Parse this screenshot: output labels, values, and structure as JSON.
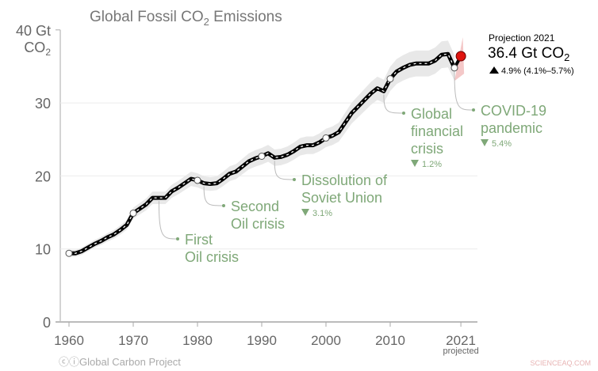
{
  "chart_data": {
    "type": "line",
    "title": "Global Fossil CO",
    "title_sub": "2",
    "title_end": " Emissions",
    "ylabel_line1": "40 Gt",
    "ylabel_line2": "CO",
    "ylabel_sub": "2",
    "ylim": [
      0,
      40
    ],
    "xlim": [
      1958,
      2022
    ],
    "grid": true,
    "y_ticks": [
      0,
      10,
      20,
      30
    ],
    "x_ticks": [
      {
        "year": 1960,
        "label": "1960"
      },
      {
        "year": 1970,
        "label": "1970"
      },
      {
        "year": 1980,
        "label": "1980"
      },
      {
        "year": 1990,
        "label": "1990"
      },
      {
        "year": 2000,
        "label": "2000"
      },
      {
        "year": 2010,
        "label": "2010"
      },
      {
        "year": 2021,
        "label": "2021"
      }
    ],
    "x_tick_note": "projected",
    "x": [
      1960,
      1961,
      1962,
      1963,
      1964,
      1965,
      1966,
      1967,
      1968,
      1969,
      1970,
      1971,
      1972,
      1973,
      1974,
      1975,
      1976,
      1977,
      1978,
      1979,
      1980,
      1981,
      1982,
      1983,
      1984,
      1985,
      1986,
      1987,
      1988,
      1989,
      1990,
      1991,
      1992,
      1993,
      1994,
      1995,
      1996,
      1997,
      1998,
      1999,
      2000,
      2001,
      2002,
      2003,
      2004,
      2005,
      2006,
      2007,
      2008,
      2009,
      2010,
      2011,
      2012,
      2013,
      2014,
      2015,
      2016,
      2017,
      2018,
      2019,
      2020
    ],
    "values": [
      9.4,
      9.4,
      9.7,
      10.2,
      10.7,
      11.1,
      11.6,
      12.0,
      12.6,
      13.3,
      14.9,
      15.5,
      16.1,
      17.0,
      17.0,
      17.0,
      17.9,
      18.4,
      19.0,
      19.6,
      19.4,
      19.0,
      18.9,
      19.0,
      19.6,
      20.3,
      20.6,
      21.3,
      22.0,
      22.4,
      22.7,
      23.1,
      22.5,
      22.6,
      22.9,
      23.4,
      24.0,
      24.2,
      24.2,
      24.6,
      25.2,
      25.5,
      26.0,
      27.3,
      28.6,
      29.5,
      30.4,
      31.3,
      32.0,
      31.6,
      33.3,
      34.3,
      34.8,
      35.2,
      35.4,
      35.4,
      35.4,
      35.8,
      36.6,
      36.7,
      34.8
    ],
    "marked_years": [
      1960,
      1970,
      1980,
      1990,
      2000,
      2010,
      2020
    ],
    "projection": {
      "year": 2021,
      "value": 36.4,
      "label": "Projection 2021",
      "value_text": "36.4 Gt CO",
      "value_sub": "2",
      "change_text": "4.9% (4.1%–5.7%)",
      "direction": "up"
    },
    "annotations": [
      {
        "year": 1974,
        "lines": [
          "First",
          "Oil crisis"
        ],
        "change": ""
      },
      {
        "year": 1981,
        "lines": [
          "Second",
          "Oil crisis"
        ],
        "change": ""
      },
      {
        "year": 1992,
        "lines": [
          "Dissolution of",
          "Soviet Union"
        ],
        "change": "3.1%"
      },
      {
        "year": 2009,
        "lines": [
          "Global",
          "financial",
          "crisis"
        ],
        "change": "1.2%"
      },
      {
        "year": 2020,
        "lines": [
          "COVID-19",
          "pandemic"
        ],
        "change": "5.4%"
      }
    ],
    "colors": {
      "line": "#000000",
      "annotation": "#7fa878",
      "projection": "#e0140f",
      "band": "#e8e8e8",
      "axis": "#888888",
      "text": "#666666"
    }
  },
  "footer": {
    "credit": "Global Carbon Project",
    "watermark": "SCIENCEAQ.COM"
  }
}
